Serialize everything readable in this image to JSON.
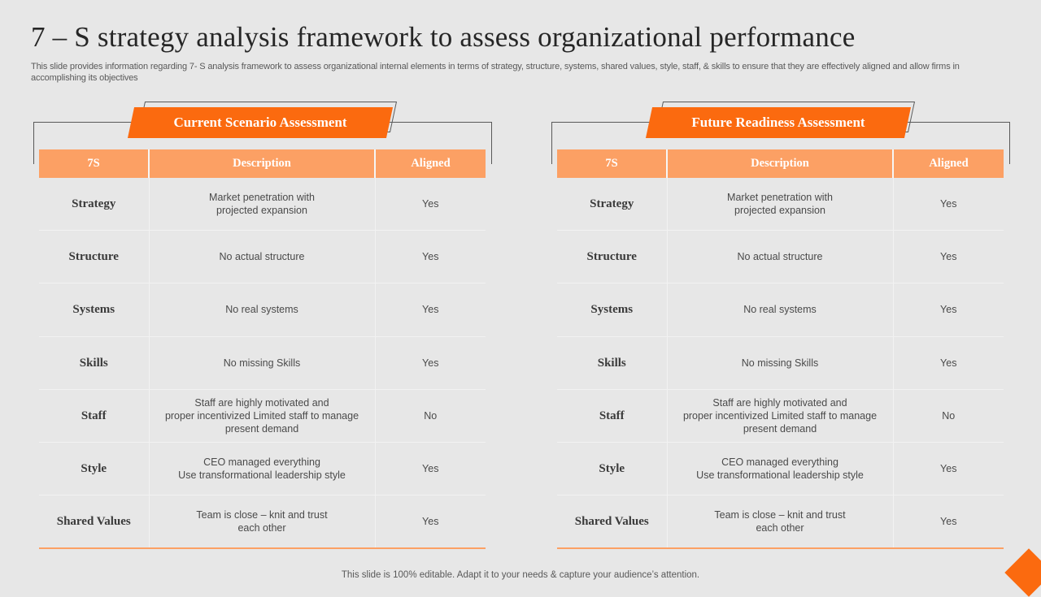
{
  "title": "7 – S strategy analysis framework to assess organizational performance",
  "subtitle": "This slide provides information regarding 7- S analysis framework to assess organizational internal elements in terms of strategy, structure, systems, shared values, style, staff, & skills to ensure that they are effectively aligned and allow firms in accomplishing its objectives",
  "footer": "This slide is 100% editable. Adapt it to your needs & capture your audience’s attention.",
  "colors": {
    "accent": "#fb6a0f",
    "header_fill": "#fca064",
    "background": "#e7e7e7"
  },
  "panels": [
    {
      "heading": "Current Scenario Assessment",
      "columns": [
        "7S",
        "Description",
        "Aligned"
      ],
      "rows": [
        {
          "s": "Strategy",
          "desc": [
            "Market penetration with",
            "projected expansion"
          ],
          "aligned": "Yes"
        },
        {
          "s": "Structure",
          "desc": [
            "No actual structure"
          ],
          "aligned": "Yes"
        },
        {
          "s": "Systems",
          "desc": [
            "No real systems"
          ],
          "aligned": "Yes"
        },
        {
          "s": "Skills",
          "desc": [
            "No missing Skills"
          ],
          "aligned": "Yes"
        },
        {
          "s": "Staff",
          "desc": [
            "Staff are highly motivated and",
            "proper incentivized Limited staff to manage",
            "present demand"
          ],
          "aligned": "No"
        },
        {
          "s": "Style",
          "desc": [
            "CEO managed everything",
            "Use transformational  leadership style"
          ],
          "aligned": "Yes"
        },
        {
          "s": "Shared Values",
          "desc": [
            "Team  is close – knit and trust",
            "each other"
          ],
          "aligned": "Yes"
        }
      ]
    },
    {
      "heading": "Future Readiness Assessment",
      "columns": [
        "7S",
        "Description",
        "Aligned"
      ],
      "rows": [
        {
          "s": "Strategy",
          "desc": [
            "Market penetration with",
            "projected expansion"
          ],
          "aligned": "Yes"
        },
        {
          "s": "Structure",
          "desc": [
            "No actual structure"
          ],
          "aligned": "Yes"
        },
        {
          "s": "Systems",
          "desc": [
            "No real systems"
          ],
          "aligned": "Yes"
        },
        {
          "s": "Skills",
          "desc": [
            "No missing Skills"
          ],
          "aligned": "Yes"
        },
        {
          "s": "Staff",
          "desc": [
            "Staff are highly motivated and",
            "proper incentivized Limited staff to manage",
            "present demand"
          ],
          "aligned": "No"
        },
        {
          "s": "Style",
          "desc": [
            "CEO managed everything",
            "Use transformational  leadership style"
          ],
          "aligned": "Yes"
        },
        {
          "s": "Shared Values",
          "desc": [
            "Team  is close – knit and trust",
            "each other"
          ],
          "aligned": "Yes"
        }
      ]
    }
  ]
}
